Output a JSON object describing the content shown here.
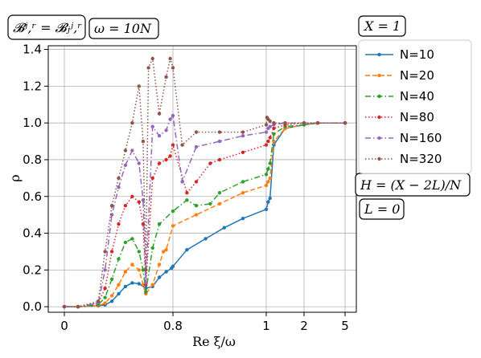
{
  "chart_data": {
    "type": "line",
    "xlabel": "Re ξ/ω",
    "ylabel": "ρ",
    "ylim": [
      -0.03,
      1.42
    ],
    "x_scale": "piecewise (linear 0–1, then compressed beyond 1)",
    "x_ticks": [
      0,
      0.8,
      1,
      2,
      5
    ],
    "x_tick_labels": [
      "0",
      "0.8",
      "1",
      "2",
      "5"
    ],
    "y_ticks": [
      0.0,
      0.2,
      0.4,
      0.6,
      0.8,
      1.0,
      1.2,
      1.4
    ],
    "y_tick_labels": [
      "0.0",
      "0.2",
      "0.4",
      "0.6",
      "0.8",
      "1.0",
      "1.2",
      "1.4"
    ],
    "grid": true,
    "legend_position": "right",
    "annotations": [
      "𝓑ʲ,ʳ = 𝓑ⱼʲ,ʳ",
      "ω = 10N",
      "X = 1",
      "H = (X − 2L)/N",
      "L = 0"
    ],
    "series": [
      {
        "name": "N=10",
        "color": "#1f77b4",
        "linestyle": "solid",
        "x": [
          0,
          0.1,
          0.25,
          0.3,
          0.35,
          0.4,
          0.45,
          0.5,
          0.55,
          0.6,
          0.65,
          0.7,
          0.75,
          0.79,
          0.8,
          0.83,
          0.87,
          0.91,
          0.95,
          1.0,
          1.05,
          1.1,
          1.2,
          1.5,
          2,
          3,
          5
        ],
        "y": [
          0.0,
          0.0,
          0.005,
          0.01,
          0.03,
          0.07,
          0.11,
          0.13,
          0.125,
          0.1,
          0.11,
          0.16,
          0.19,
          0.21,
          0.22,
          0.31,
          0.37,
          0.43,
          0.48,
          0.53,
          0.57,
          0.59,
          0.88,
          0.97,
          0.99,
          1.0,
          1.0
        ]
      },
      {
        "name": "N=20",
        "color": "#ff7f0e",
        "linestyle": "dashed",
        "x": [
          0,
          0.1,
          0.25,
          0.3,
          0.35,
          0.4,
          0.45,
          0.5,
          0.55,
          0.58,
          0.6,
          0.65,
          0.7,
          0.73,
          0.75,
          0.8,
          0.85,
          0.9,
          0.95,
          1.0,
          1.05,
          1.1,
          1.2,
          1.5,
          2,
          3,
          5
        ],
        "y": [
          0.0,
          0.0,
          0.005,
          0.02,
          0.06,
          0.12,
          0.19,
          0.23,
          0.2,
          0.12,
          0.07,
          0.12,
          0.23,
          0.3,
          0.31,
          0.44,
          0.5,
          0.56,
          0.62,
          0.66,
          0.68,
          0.7,
          0.9,
          0.97,
          0.99,
          1.0,
          1.0
        ]
      },
      {
        "name": "N=40",
        "color": "#2ca02c",
        "linestyle": "dashdot",
        "x": [
          0,
          0.1,
          0.25,
          0.3,
          0.35,
          0.4,
          0.45,
          0.5,
          0.55,
          0.58,
          0.6,
          0.65,
          0.7,
          0.8,
          0.83,
          0.85,
          0.88,
          0.9,
          0.95,
          1.0,
          1.05,
          1.1,
          1.2,
          1.5,
          2,
          3,
          5
        ],
        "y": [
          0.0,
          0.0,
          0.01,
          0.05,
          0.15,
          0.26,
          0.35,
          0.37,
          0.3,
          0.2,
          0.08,
          0.32,
          0.45,
          0.52,
          0.58,
          0.55,
          0.56,
          0.62,
          0.68,
          0.72,
          0.75,
          0.78,
          0.94,
          0.98,
          0.99,
          1.0,
          1.0
        ]
      },
      {
        "name": "N=80",
        "color": "#d62728",
        "linestyle": "dotted",
        "x": [
          0,
          0.1,
          0.25,
          0.3,
          0.35,
          0.4,
          0.45,
          0.5,
          0.55,
          0.58,
          0.6,
          0.65,
          0.7,
          0.75,
          0.78,
          0.8,
          0.83,
          0.85,
          0.88,
          0.9,
          0.95,
          1.0,
          1.05,
          1.1,
          1.2,
          1.5,
          2,
          3,
          5
        ],
        "y": [
          0.0,
          0.0,
          0.02,
          0.1,
          0.3,
          0.45,
          0.55,
          0.6,
          0.57,
          0.45,
          0.12,
          0.7,
          0.78,
          0.8,
          0.82,
          0.88,
          0.62,
          0.68,
          0.78,
          0.8,
          0.84,
          0.88,
          0.9,
          0.92,
          0.97,
          0.99,
          1.0,
          1.0,
          1.0
        ]
      },
      {
        "name": "N=160",
        "color": "#9467bd",
        "linestyle": "dashdot",
        "x": [
          0,
          0.1,
          0.25,
          0.3,
          0.35,
          0.4,
          0.45,
          0.5,
          0.55,
          0.58,
          0.6,
          0.65,
          0.7,
          0.75,
          0.78,
          0.8,
          0.82,
          0.85,
          0.9,
          0.95,
          1.0,
          1.05,
          1.1,
          1.2,
          1.5,
          2,
          3,
          5
        ],
        "y": [
          0.0,
          0.0,
          0.02,
          0.2,
          0.5,
          0.65,
          0.77,
          0.85,
          0.78,
          0.58,
          0.13,
          0.98,
          0.93,
          0.96,
          1.02,
          1.04,
          0.68,
          0.87,
          0.9,
          0.93,
          0.95,
          0.97,
          0.98,
          0.99,
          1.0,
          1.0,
          1.0,
          1.0
        ]
      },
      {
        "name": "N=320",
        "color": "#8c564b",
        "linestyle": "dotted",
        "x": [
          0,
          0.1,
          0.25,
          0.3,
          0.35,
          0.4,
          0.45,
          0.5,
          0.55,
          0.58,
          0.6,
          0.62,
          0.65,
          0.7,
          0.75,
          0.78,
          0.8,
          0.82,
          0.85,
          0.9,
          0.95,
          1.0,
          1.02,
          1.05,
          1.1,
          1.2,
          1.5,
          2,
          3,
          5
        ],
        "y": [
          0.0,
          0.0,
          0.03,
          0.3,
          0.55,
          0.7,
          0.85,
          1.0,
          1.2,
          0.9,
          0.2,
          1.3,
          1.35,
          1.05,
          1.25,
          1.35,
          1.3,
          0.88,
          0.95,
          0.95,
          0.95,
          0.99,
          1.03,
          1.02,
          1.01,
          1.0,
          1.0,
          1.0,
          1.0,
          1.0
        ]
      }
    ]
  }
}
